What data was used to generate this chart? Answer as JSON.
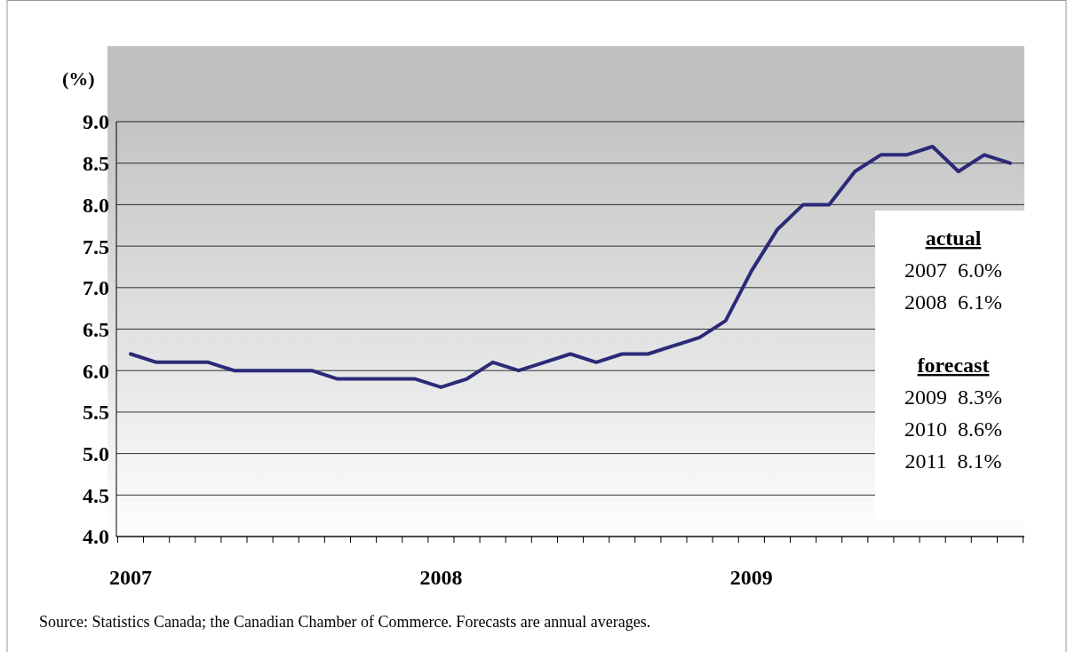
{
  "chart_data": {
    "type": "line",
    "ylabel": "(%)",
    "categories": [
      "2007",
      null,
      null,
      null,
      null,
      null,
      null,
      null,
      null,
      null,
      null,
      null,
      "2008",
      null,
      null,
      null,
      null,
      null,
      null,
      null,
      null,
      null,
      null,
      null,
      "2009",
      null,
      null,
      null,
      null,
      null,
      null,
      null,
      null,
      null,
      null
    ],
    "series": [
      {
        "color": "#2b2a78",
        "values": [
          6.2,
          6.1,
          6.1,
          6.1,
          6.0,
          6.0,
          6.0,
          6.0,
          5.9,
          5.9,
          5.9,
          5.9,
          5.8,
          5.9,
          6.1,
          6.0,
          6.1,
          6.2,
          6.1,
          6.2,
          6.2,
          6.3,
          6.4,
          6.6,
          7.2,
          7.7,
          8.0,
          8.0,
          8.4,
          8.6,
          8.6,
          8.7,
          8.4,
          8.6,
          8.5
        ]
      }
    ],
    "ylim": [
      4.0,
      9.0
    ],
    "yticks": [
      {
        "value": 4,
        "label": "4.0"
      },
      {
        "value": 4.5,
        "label": "4.5"
      },
      {
        "value": 5,
        "label": "5.0"
      },
      {
        "value": 5.5,
        "label": "5.5"
      },
      {
        "value": 6,
        "label": "6.0"
      },
      {
        "value": 6.5,
        "label": "6.5"
      },
      {
        "value": 7,
        "label": "7.0"
      },
      {
        "value": 7.5,
        "label": "7.5"
      },
      {
        "value": 8,
        "label": "8.0"
      },
      {
        "value": 8.5,
        "label": "8.5"
      },
      {
        "value": 9,
        "label": "9.0"
      }
    ],
    "grid": "y",
    "marker": "none",
    "line_style": "solid",
    "annotations": [
      "actual",
      "2007  6.0%",
      "2008  6.1%",
      "forecast",
      "2009  8.3%",
      "2010  8.6%",
      "2011  8.1%",
      "Source: Statistics Canada; the Canadian Chamber of Commerce. Forecasts are annual averages."
    ]
  }
}
